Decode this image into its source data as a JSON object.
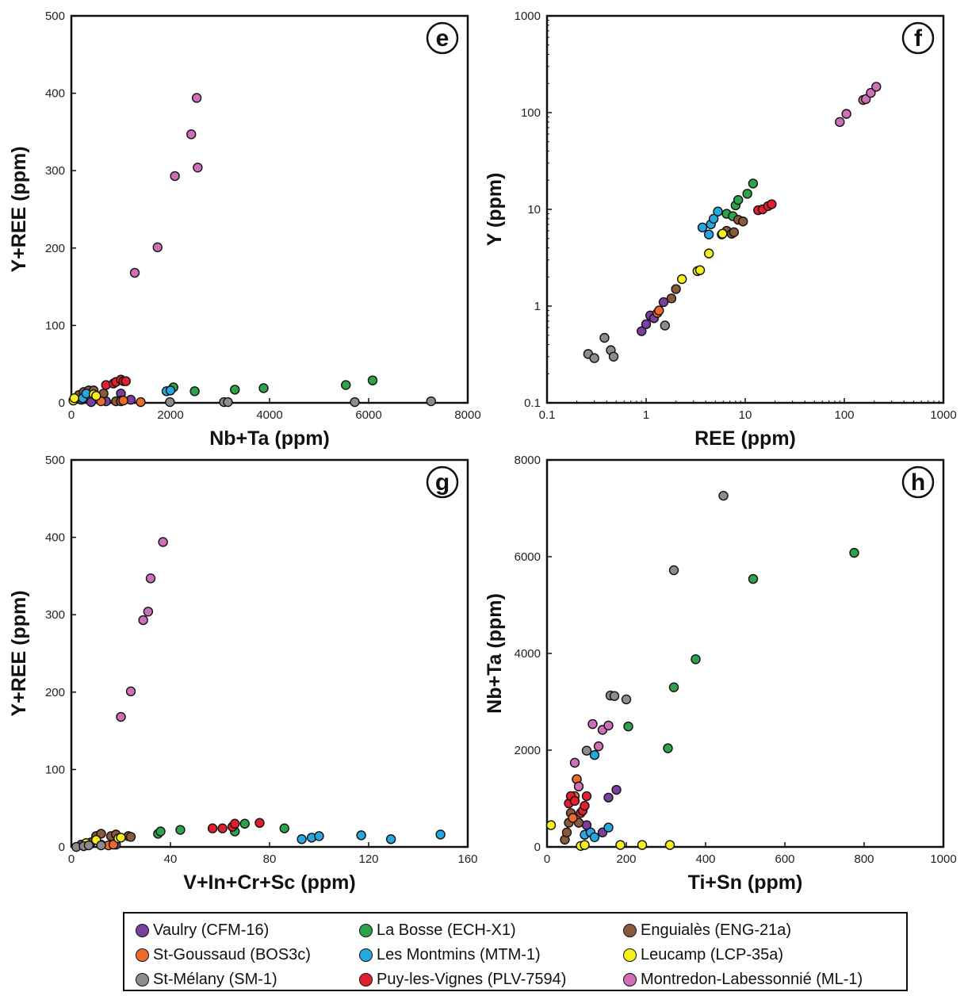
{
  "legend": {
    "items": [
      {
        "key": "vaulry",
        "label": "Vaulry (CFM-16)",
        "color": "#7b3fa0"
      },
      {
        "key": "labosse",
        "label": "La Bosse (ECH-X1)",
        "color": "#2ca24a"
      },
      {
        "key": "enguiales",
        "label": "Enguialès (ENG-21a)",
        "color": "#8b5a3c"
      },
      {
        "key": "stgoussaud",
        "label": "St-Goussaud (BOS3c)",
        "color": "#ee6a2b"
      },
      {
        "key": "montmins",
        "label": "Les Montmins (MTM-1)",
        "color": "#27a7e0"
      },
      {
        "key": "leucamp",
        "label": "Leucamp (LCP-35a)",
        "color": "#f5f01c"
      },
      {
        "key": "stmelany",
        "label": "St-Mélany (SM-1)",
        "color": "#8c8c8c"
      },
      {
        "key": "puy",
        "label": "Puy-les-Vignes (PLV-7594)",
        "color": "#e0202f"
      },
      {
        "key": "montredon",
        "label": "Montredon-Labessonnié (ML-1)",
        "color": "#cf6fb9"
      }
    ]
  },
  "chart_data": [
    {
      "panel": "e",
      "type": "scatter",
      "xlabel": "Nb+Ta (ppm)",
      "ylabel": "Y+REE (ppm)",
      "xlim": [
        0,
        8000
      ],
      "ylim": [
        0,
        500
      ],
      "xticks": [
        0,
        2000,
        4000,
        6000,
        8000
      ],
      "yticks": [
        0,
        100,
        200,
        300,
        400,
        500
      ],
      "xscale": "linear",
      "yscale": "linear",
      "series": [
        {
          "key": "vaulry",
          "points": [
            [
              1000,
              12
            ],
            [
              1200,
              4
            ],
            [
              1000,
              3
            ],
            [
              700,
              2
            ],
            [
              400,
              1
            ],
            [
              200,
              4
            ]
          ]
        },
        {
          "key": "labosse",
          "points": [
            [
              2060,
              20
            ],
            [
              2490,
              15
            ],
            [
              3300,
              17
            ],
            [
              3880,
              19
            ],
            [
              5540,
              23
            ],
            [
              6080,
              29
            ]
          ]
        },
        {
          "key": "enguiales",
          "points": [
            [
              150,
              10
            ],
            [
              250,
              14
            ],
            [
              350,
              16
            ],
            [
              450,
              16
            ],
            [
              650,
              12
            ],
            [
              900,
              2
            ],
            [
              1000,
              2
            ]
          ]
        },
        {
          "key": "stgoussaud",
          "points": [
            [
              600,
              2
            ],
            [
              1050,
              3
            ],
            [
              1400,
              1
            ]
          ]
        },
        {
          "key": "montmins",
          "points": [
            [
              230,
              6
            ],
            [
              300,
              12
            ],
            [
              1920,
              15
            ],
            [
              2000,
              16
            ]
          ]
        },
        {
          "key": "leucamp",
          "points": [
            [
              40,
              3
            ],
            [
              60,
              6
            ],
            [
              450,
              11
            ],
            [
              500,
              9
            ]
          ]
        },
        {
          "key": "stmelany",
          "points": [
            [
              1990,
              1
            ],
            [
              3080,
              1
            ],
            [
              3160,
              1
            ],
            [
              5720,
              1
            ],
            [
              7260,
              2
            ]
          ]
        },
        {
          "key": "puy",
          "points": [
            [
              700,
              23
            ],
            [
              850,
              25
            ],
            [
              900,
              27
            ],
            [
              1000,
              30
            ],
            [
              1050,
              28
            ],
            [
              1100,
              28
            ]
          ]
        },
        {
          "key": "montredon",
          "points": [
            [
              1280,
              168
            ],
            [
              1740,
              201
            ],
            [
              2090,
              293
            ],
            [
              2420,
              347
            ],
            [
              2530,
              394
            ],
            [
              2550,
              304
            ]
          ]
        }
      ]
    },
    {
      "panel": "f",
      "type": "scatter",
      "xlabel": "REE (ppm)",
      "ylabel": "Y (ppm)",
      "xlim": [
        0.1,
        1000
      ],
      "ylim": [
        0.1,
        1000
      ],
      "xticks": [
        0.1,
        1,
        10,
        100,
        1000
      ],
      "yticks": [
        0.1,
        1,
        10,
        100,
        1000
      ],
      "xscale": "log",
      "yscale": "log",
      "series": [
        {
          "key": "vaulry",
          "points": [
            [
              0.9,
              0.55
            ],
            [
              1.0,
              0.65
            ],
            [
              1.1,
              0.8
            ],
            [
              1.2,
              0.75
            ],
            [
              1.5,
              1.1
            ]
          ]
        },
        {
          "key": "labosse",
          "points": [
            [
              6.5,
              9
            ],
            [
              7.5,
              8.5
            ],
            [
              8,
              11
            ],
            [
              8.5,
              12.5
            ],
            [
              10.5,
              14.5
            ],
            [
              12,
              18.5
            ]
          ]
        },
        {
          "key": "enguiales",
          "points": [
            [
              1.8,
              1.2
            ],
            [
              2.0,
              1.5
            ],
            [
              5.8,
              5.5
            ],
            [
              6.5,
              6.0
            ],
            [
              7.3,
              5.6
            ],
            [
              7.7,
              5.8
            ],
            [
              8.5,
              7.8
            ],
            [
              9.5,
              7.5
            ]
          ]
        },
        {
          "key": "stgoussaud",
          "points": [
            [
              1.3,
              0.85
            ],
            [
              1.35,
              0.9
            ]
          ]
        },
        {
          "key": "montmins",
          "points": [
            [
              3.7,
              6.5
            ],
            [
              4.3,
              5.5
            ],
            [
              4.5,
              7
            ],
            [
              4.8,
              8
            ],
            [
              5.3,
              9.5
            ]
          ]
        },
        {
          "key": "leucamp",
          "points": [
            [
              2.3,
              1.9
            ],
            [
              3.3,
              2.3
            ],
            [
              3.5,
              2.35
            ],
            [
              4.3,
              3.5
            ],
            [
              5.9,
              5.6
            ]
          ]
        },
        {
          "key": "stmelany",
          "points": [
            [
              0.26,
              0.32
            ],
            [
              0.3,
              0.29
            ],
            [
              0.38,
              0.47
            ],
            [
              0.44,
              0.35
            ],
            [
              0.47,
              0.3
            ],
            [
              1.55,
              0.63
            ]
          ]
        },
        {
          "key": "puy",
          "points": [
            [
              13.5,
              9.8
            ],
            [
              15,
              10
            ],
            [
              17,
              10.8
            ],
            [
              18.5,
              11.3
            ]
          ]
        },
        {
          "key": "montredon",
          "points": [
            [
              90,
              80
            ],
            [
              105,
              97
            ],
            [
              155,
              135
            ],
            [
              165,
              138
            ],
            [
              185,
              160
            ],
            [
              210,
              185
            ]
          ]
        }
      ]
    },
    {
      "panel": "g",
      "type": "scatter",
      "xlabel": "V+In+Cr+Sc (ppm)",
      "ylabel": "Y+REE (ppm)",
      "xlim": [
        0,
        160
      ],
      "ylim": [
        0,
        500
      ],
      "xticks": [
        0,
        40,
        80,
        120,
        160
      ],
      "yticks": [
        0,
        100,
        200,
        300,
        400,
        500
      ],
      "xscale": "linear",
      "yscale": "linear",
      "series": [
        {
          "key": "vaulry",
          "points": [
            [
              4,
              3
            ],
            [
              7,
              4
            ],
            [
              12,
              3
            ],
            [
              18,
              3
            ]
          ]
        },
        {
          "key": "labosse",
          "points": [
            [
              35,
              17
            ],
            [
              36,
              20
            ],
            [
              44,
              22
            ],
            [
              66,
              20
            ],
            [
              70,
              30
            ],
            [
              86,
              24
            ]
          ]
        },
        {
          "key": "enguiales",
          "points": [
            [
              8,
              6
            ],
            [
              10,
              14
            ],
            [
              12,
              17
            ],
            [
              16,
              14
            ],
            [
              18,
              16
            ],
            [
              23,
              14
            ],
            [
              24,
              13
            ]
          ]
        },
        {
          "key": "stgoussaud",
          "points": [
            [
              15,
              2
            ],
            [
              17,
              3
            ]
          ]
        },
        {
          "key": "montmins",
          "points": [
            [
              93,
              10
            ],
            [
              97,
              12
            ],
            [
              100,
              14
            ],
            [
              117,
              15
            ],
            [
              129,
              10
            ],
            [
              149,
              16
            ]
          ]
        },
        {
          "key": "leucamp",
          "points": [
            [
              6,
              5
            ],
            [
              10,
              9
            ],
            [
              19,
              11
            ],
            [
              20,
              12
            ]
          ]
        },
        {
          "key": "stmelany",
          "points": [
            [
              2,
              0
            ],
            [
              5,
              1
            ],
            [
              7,
              2
            ],
            [
              12,
              2
            ]
          ]
        },
        {
          "key": "puy",
          "points": [
            [
              57,
              24
            ],
            [
              61,
              24
            ],
            [
              65,
              26
            ],
            [
              66,
              30
            ],
            [
              76,
              31
            ]
          ]
        },
        {
          "key": "montredon",
          "points": [
            [
              20,
              168
            ],
            [
              24,
              201
            ],
            [
              29,
              293
            ],
            [
              31,
              304
            ],
            [
              32,
              347
            ],
            [
              37,
              394
            ]
          ]
        }
      ]
    },
    {
      "panel": "h",
      "type": "scatter",
      "xlabel": "Ti+Sn (ppm)",
      "ylabel": "Nb+Ta (ppm)",
      "xlim": [
        0,
        1000
      ],
      "ylim": [
        0,
        8000
      ],
      "xticks": [
        0,
        200,
        400,
        600,
        800,
        1000
      ],
      "yticks": [
        0,
        2000,
        4000,
        6000,
        8000
      ],
      "xscale": "linear",
      "yscale": "linear",
      "series": [
        {
          "key": "vaulry",
          "points": [
            [
              155,
              1020
            ],
            [
              175,
              1180
            ],
            [
              100,
              450
            ],
            [
              140,
              300
            ]
          ]
        },
        {
          "key": "labosse",
          "points": [
            [
              305,
              2040
            ],
            [
              205,
              2490
            ],
            [
              320,
              3300
            ],
            [
              375,
              3880
            ],
            [
              520,
              5540
            ],
            [
              775,
              6080
            ]
          ]
        },
        {
          "key": "enguiales",
          "points": [
            [
              45,
              150
            ],
            [
              50,
              300
            ],
            [
              55,
              500
            ],
            [
              60,
              700
            ],
            [
              75,
              1400
            ],
            [
              80,
              500
            ]
          ]
        },
        {
          "key": "stgoussaud",
          "points": [
            [
              65,
              600
            ],
            [
              70,
              1050
            ],
            [
              75,
              1400
            ]
          ]
        },
        {
          "key": "montmins",
          "points": [
            [
              95,
              250
            ],
            [
              110,
              300
            ],
            [
              120,
              200
            ],
            [
              120,
              1900
            ],
            [
              155,
              400
            ]
          ]
        },
        {
          "key": "leucamp",
          "points": [
            [
              10,
              450
            ],
            [
              85,
              20
            ],
            [
              95,
              40
            ],
            [
              185,
              40
            ],
            [
              240,
              40
            ],
            [
              310,
              40
            ]
          ]
        },
        {
          "key": "stmelany",
          "points": [
            [
              100,
              1990
            ],
            [
              160,
              3130
            ],
            [
              170,
              3120
            ],
            [
              200,
              3050
            ],
            [
              320,
              5720
            ],
            [
              445,
              7260
            ]
          ]
        },
        {
          "key": "puy",
          "points": [
            [
              55,
              900
            ],
            [
              60,
              1050
            ],
            [
              70,
              950
            ],
            [
              85,
              700
            ],
            [
              90,
              750
            ],
            [
              95,
              850
            ],
            [
              100,
              1050
            ]
          ]
        },
        {
          "key": "montredon",
          "points": [
            [
              70,
              1740
            ],
            [
              80,
              1250
            ],
            [
              115,
              2540
            ],
            [
              130,
              2080
            ],
            [
              140,
              2420
            ],
            [
              155,
              2510
            ]
          ]
        }
      ]
    }
  ]
}
